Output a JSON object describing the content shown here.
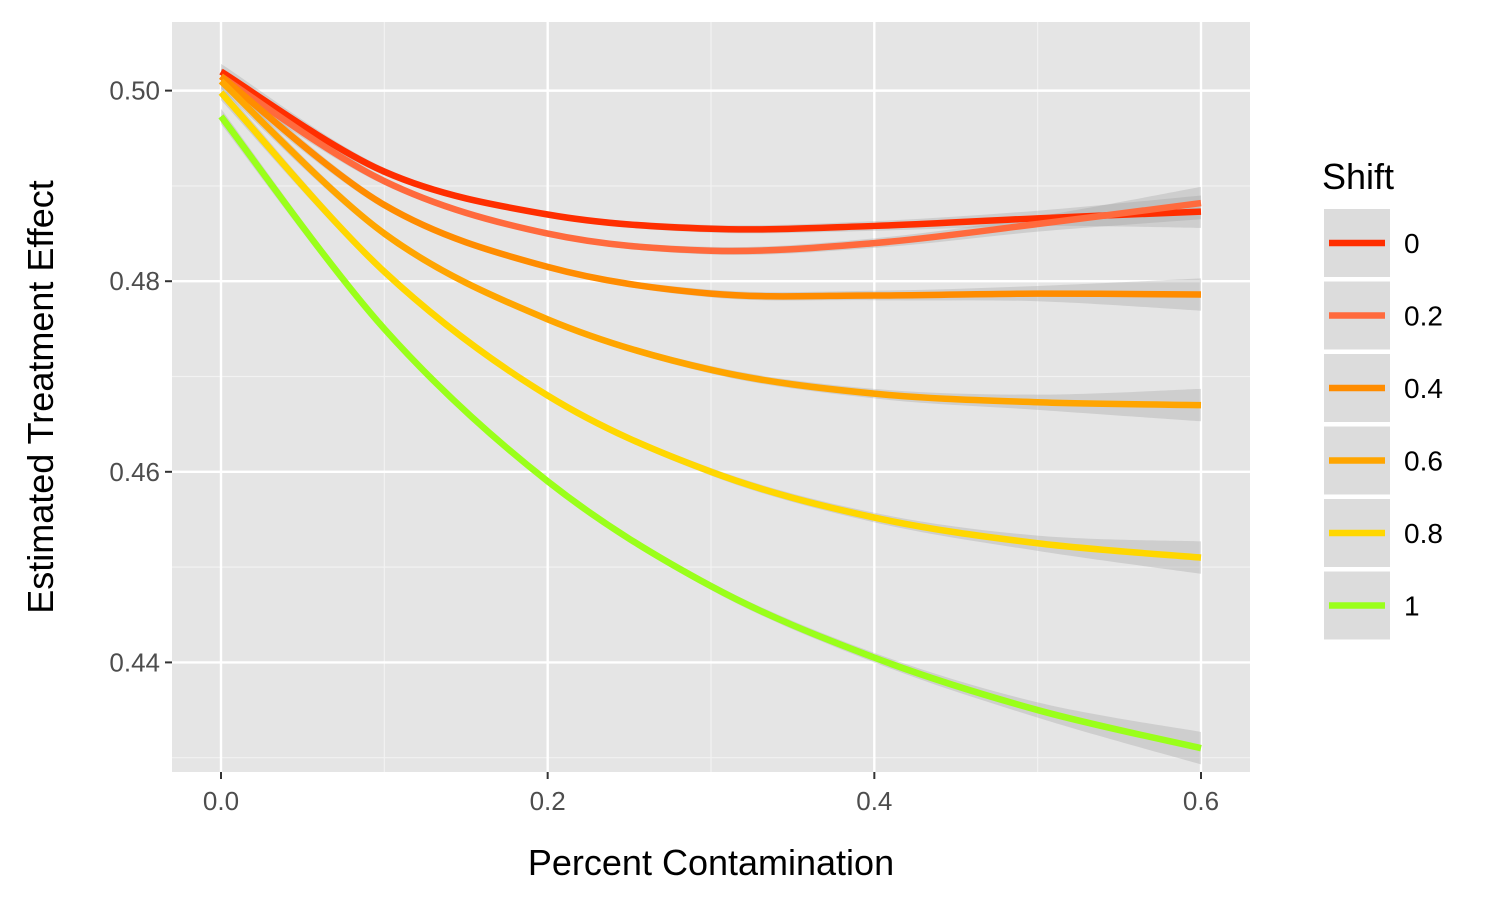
{
  "chart_data": {
    "type": "line",
    "title": "",
    "xlabel": "Percent Contamination",
    "ylabel": "Estimated Treatment Effect",
    "xlim": [
      -0.03,
      0.63
    ],
    "ylim": [
      0.4285,
      0.5072
    ],
    "x_ticks": [
      0.0,
      0.2,
      0.4,
      0.6
    ],
    "x_tick_labels": [
      "0.0",
      "0.2",
      "0.4",
      "0.6"
    ],
    "y_ticks": [
      0.44,
      0.46,
      0.48,
      0.5
    ],
    "y_tick_labels": [
      "0.44",
      "0.46",
      "0.48",
      "0.50"
    ],
    "grid": true,
    "confidence_band": true,
    "legend": {
      "title": "Shift",
      "position": "right"
    },
    "x": [
      0.0,
      0.1,
      0.2,
      0.3,
      0.4,
      0.5,
      0.6
    ],
    "series": [
      {
        "name": "0",
        "color": "#ff2e00",
        "values": [
          0.502,
          0.4915,
          0.487,
          0.4855,
          0.4858,
          0.4866,
          0.4873
        ]
      },
      {
        "name": "0.2",
        "color": "#ff6a3d",
        "values": [
          0.5015,
          0.4905,
          0.485,
          0.4832,
          0.484,
          0.486,
          0.4882
        ]
      },
      {
        "name": "0.4",
        "color": "#ff8c00",
        "values": [
          0.5015,
          0.488,
          0.4815,
          0.4787,
          0.4785,
          0.4787,
          0.4786
        ]
      },
      {
        "name": "0.6",
        "color": "#ffa500",
        "values": [
          0.501,
          0.485,
          0.476,
          0.4707,
          0.4682,
          0.4673,
          0.467
        ]
      },
      {
        "name": "0.8",
        "color": "#ffd700",
        "values": [
          0.4998,
          0.481,
          0.468,
          0.46,
          0.4552,
          0.4525,
          0.451
        ]
      },
      {
        "name": "1",
        "color": "#9aff1a",
        "values": [
          0.4973,
          0.475,
          0.459,
          0.448,
          0.4405,
          0.435,
          0.431
        ]
      }
    ]
  }
}
